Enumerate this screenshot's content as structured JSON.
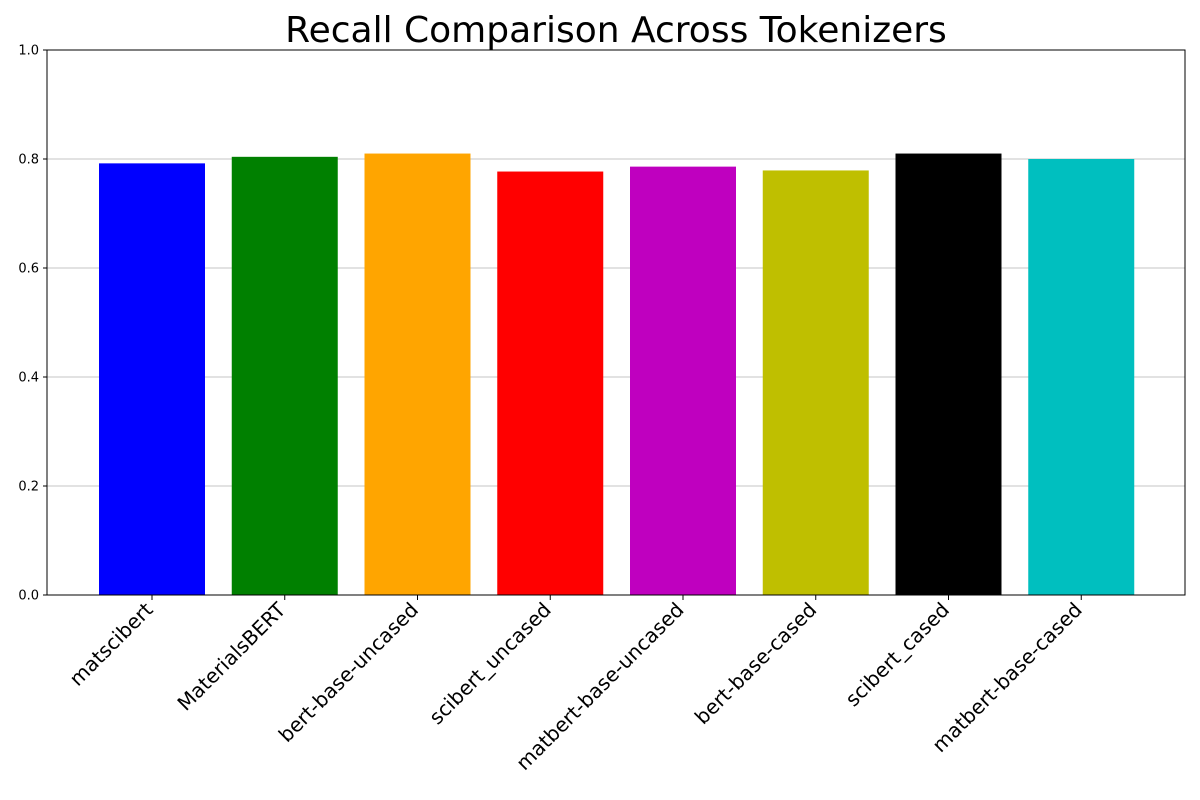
{
  "chart_data": {
    "type": "bar",
    "title": "Recall Comparison Across Tokenizers",
    "xlabel": "",
    "ylabel": "",
    "categories": [
      "matscibert",
      "MaterialsBERT",
      "bert-base-uncased",
      "scibert_uncased",
      "matbert-base-uncased",
      "bert-base-cased",
      "scibert_cased",
      "matbert-base-cased"
    ],
    "values": [
      0.792,
      0.804,
      0.81,
      0.777,
      0.786,
      0.779,
      0.81,
      0.8
    ],
    "colors": [
      "#0000ff",
      "#008000",
      "#ffa500",
      "#ff0000",
      "#bf00bf",
      "#bfbf00",
      "#000000",
      "#00bfbf"
    ],
    "ylim": [
      0,
      1
    ],
    "yticks": [
      0.0,
      0.2,
      0.4,
      0.6,
      0.8,
      1.0
    ],
    "ytick_labels": [
      "0.0",
      "0.2",
      "0.4",
      "0.6",
      "0.8",
      "1.0"
    ],
    "grid": "y-axis",
    "legend": "none"
  }
}
